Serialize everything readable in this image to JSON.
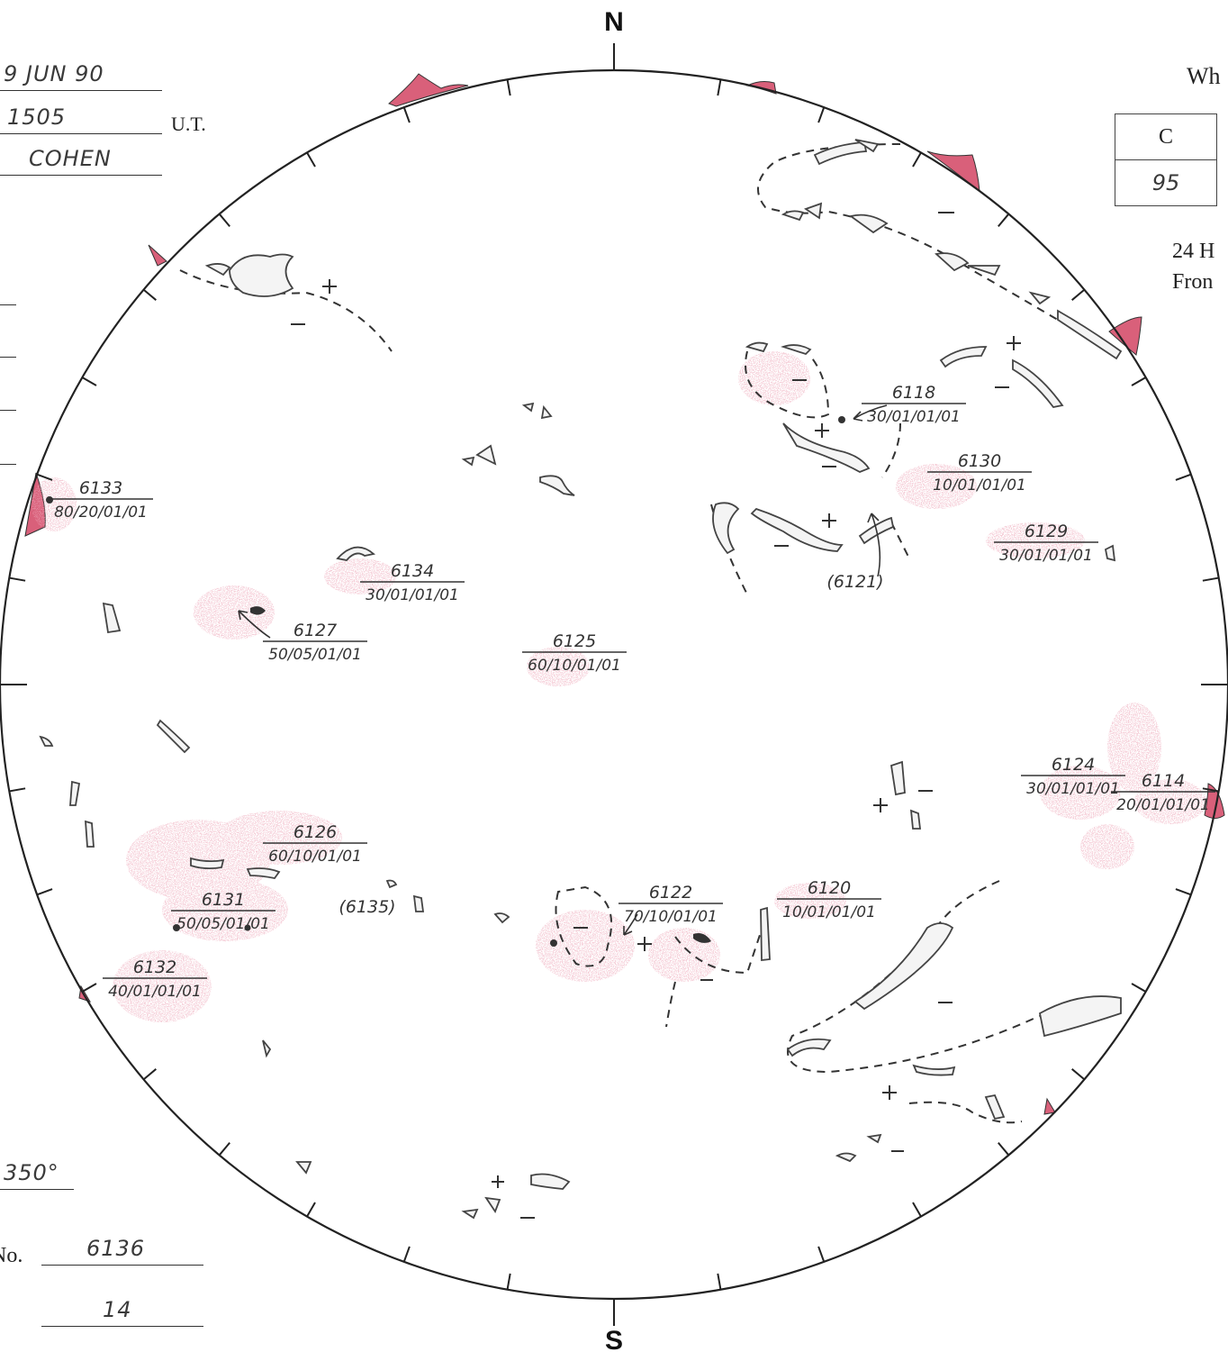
{
  "header": {
    "date": "9 JUN 90",
    "time": "1505",
    "time_unit": "U.T.",
    "observer": "COHEN"
  },
  "left_panel": {
    "angle_value": "350°",
    "number_label": "No.",
    "number_value": "6136",
    "count_value": "14"
  },
  "right_panel": {
    "heading_partial": "Wh",
    "table_header": "C",
    "table_value": "95",
    "note_line1": "24 H",
    "note_line2": "Fron"
  },
  "compass": {
    "north": "N",
    "south": "S"
  },
  "colors": {
    "ink": "#333333",
    "plage": "#d9607a",
    "plage_light": "#e89aab",
    "filament": "#555555"
  },
  "regions": [
    {
      "num": "6118",
      "code": "30/01/01/01"
    },
    {
      "num": "6130",
      "code": "10/01/01/01"
    },
    {
      "num": "6129",
      "code": "30/01/01/01"
    },
    {
      "num": "(6121)",
      "code": ""
    },
    {
      "num": "6133",
      "code": "80/20/01/01"
    },
    {
      "num": "6134",
      "code": "30/01/01/01"
    },
    {
      "num": "6127",
      "code": "50/05/01/01"
    },
    {
      "num": "6125",
      "code": "60/10/01/01"
    },
    {
      "num": "6124",
      "code": "30/01/01/01"
    },
    {
      "num": "6114",
      "code": "20/01/01/01"
    },
    {
      "num": "6126",
      "code": "60/10/01/01"
    },
    {
      "num": "6131",
      "code": "50/05/01/01"
    },
    {
      "num": "(6135)",
      "code": ""
    },
    {
      "num": "6122",
      "code": "70/10/01/01"
    },
    {
      "num": "6120",
      "code": "10/01/01/01"
    },
    {
      "num": "6132",
      "code": "40/01/01/01"
    }
  ]
}
